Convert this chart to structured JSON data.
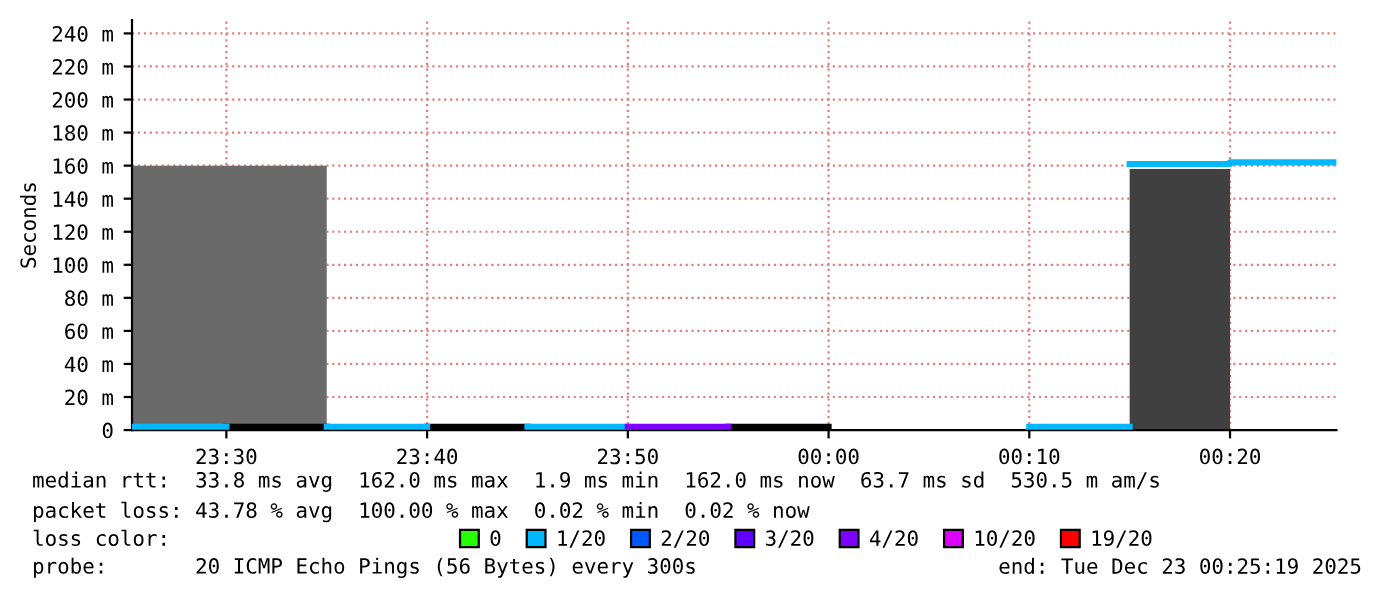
{
  "chart_data": {
    "type": "line",
    "ylabel": "Seconds",
    "legend_title": "loss color:",
    "xlim": [
      "2025-12-22T23:25:18",
      "2025-12-23T00:25:18"
    ],
    "xticks": [
      {
        "value": "2025-12-22T23:30",
        "label": "23:30"
      },
      {
        "value": "2025-12-22T23:40",
        "label": "23:40"
      },
      {
        "value": "2025-12-22T23:50",
        "label": "23:50"
      },
      {
        "value": "2025-12-23T00:00",
        "label": "00:00"
      },
      {
        "value": "2025-12-23T00:10",
        "label": "00:10"
      },
      {
        "value": "2025-12-23T00:20",
        "label": "00:20"
      }
    ],
    "ylim": [
      0,
      248
    ],
    "yticks": [
      0,
      {
        "value": 20,
        "label": "20 m"
      },
      {
        "value": 40,
        "label": "40 m"
      },
      {
        "value": 60,
        "label": "60 m"
      },
      {
        "value": 80,
        "label": "80 m"
      },
      {
        "value": 100,
        "label": "100 m"
      },
      {
        "value": 120,
        "label": "120 m"
      },
      {
        "value": 140,
        "label": "140 m"
      },
      {
        "value": 160,
        "label": "160 m"
      },
      {
        "value": 180,
        "label": "180 m"
      },
      {
        "value": 200,
        "label": "200 m"
      },
      {
        "value": 220,
        "label": "220 m"
      },
      {
        "value": 240,
        "label": "240 m"
      }
    ],
    "grid": true,
    "legend": "bottom",
    "series": [
      {
        "type": "area",
        "color": "#6a6a6a",
        "x": [
          "2025-12-22T23:25:18",
          "2025-12-22T23:35"
        ],
        "values": [
          160,
          160
        ]
      },
      {
        "type": "area",
        "color": "#404040",
        "x": [
          "2025-12-23T00:15",
          "2025-12-23T00:20"
        ],
        "values": [
          158,
          158
        ]
      },
      {
        "color": "#000000",
        "x": [
          "2025-12-22T23:30",
          "2025-12-22T23:35"
        ],
        "values": [
          2,
          2
        ]
      },
      {
        "color": "#000000",
        "x": [
          "2025-12-22T23:40",
          "2025-12-22T23:45"
        ],
        "values": [
          2,
          2
        ]
      },
      {
        "color": "#000000",
        "x": [
          "2025-12-22T23:55",
          "2025-12-23T00:00"
        ],
        "values": [
          2,
          2
        ]
      },
      {
        "name": "0",
        "color": "#26ff00"
      },
      {
        "name": "1/20",
        "color": "#00b8ff",
        "x": [
          "2025-12-22T23:25:18",
          "2025-12-22T23:30"
        ],
        "values": [
          2,
          2
        ]
      },
      {
        "color": "#00b8ff",
        "x": [
          "2025-12-22T23:35",
          "2025-12-22T23:40"
        ],
        "values": [
          2,
          2
        ]
      },
      {
        "color": "#00b8ff",
        "x": [
          "2025-12-22T23:45",
          "2025-12-22T23:50"
        ],
        "values": [
          2,
          2
        ]
      },
      {
        "color": "#00b8ff",
        "x": [
          "2025-12-23T00:10",
          "2025-12-23T00:15"
        ],
        "values": [
          2,
          2
        ]
      },
      {
        "color": "#00b8ff",
        "x": [
          "2025-12-23T00:15",
          "2025-12-23T00:20",
          "2025-12-23T00:20",
          "2025-12-23T00:25:18"
        ],
        "values": [
          161,
          161,
          162,
          162
        ]
      },
      {
        "name": "2/20",
        "color": "#0059ff"
      },
      {
        "name": "3/20",
        "color": "#5e00ff"
      },
      {
        "name": "4/20",
        "color": "#7e00ff",
        "x": [
          "2025-12-22T23:50",
          "2025-12-22T23:55"
        ],
        "values": [
          2,
          2
        ]
      },
      {
        "name": "10/20",
        "color": "#dd00ff"
      },
      {
        "name": "19/20",
        "color": "#ff0000"
      }
    ],
    "annotations": [
      "median rtt:  33.8 ms avg  162.0 ms max  1.9 ms min  162.0 ms now  63.7 ms sd  530.5 m am/s",
      "packet loss: 43.78 % avg  100.00 % max  0.02 % min  0.02 % now",
      "probe:       20 ICMP Echo Pings (56 Bytes) every 300s",
      "end: Tue Dec 23 00:25:19 2025"
    ]
  }
}
